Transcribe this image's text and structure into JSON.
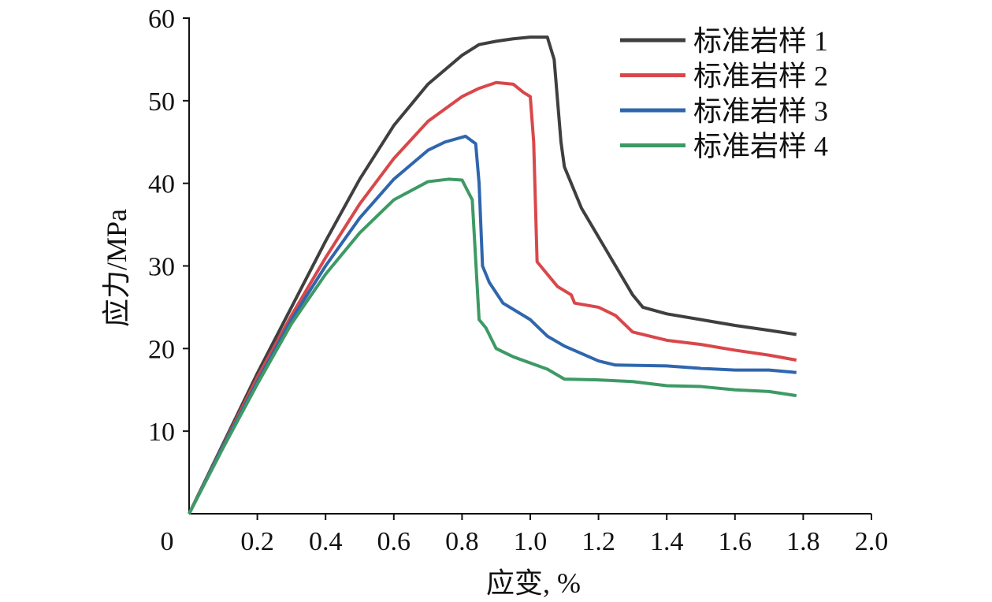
{
  "chart_data": {
    "type": "line",
    "title": "",
    "xlabel": "应变, %",
    "ylabel": "应力/MPa",
    "xlim": [
      0,
      2.0
    ],
    "ylim": [
      0,
      60
    ],
    "origin_label": "0",
    "xticks": [
      "0.2",
      "0.4",
      "0.6",
      "0.8",
      "1.0",
      "1.2",
      "1.4",
      "1.6",
      "1.8",
      "2.0"
    ],
    "xtick_values": [
      0.2,
      0.4,
      0.6,
      0.8,
      1.0,
      1.2,
      1.4,
      1.6,
      1.8,
      2.0
    ],
    "yticks": [
      "10",
      "20",
      "30",
      "40",
      "50",
      "60"
    ],
    "ytick_values": [
      10,
      20,
      30,
      40,
      50,
      60
    ],
    "grid": false,
    "legend_position": "top-right",
    "series": [
      {
        "name": "标准岩样 1",
        "color": "#3f3f3f",
        "points": [
          [
            0,
            0
          ],
          [
            0.1,
            8.5
          ],
          [
            0.2,
            17
          ],
          [
            0.3,
            25
          ],
          [
            0.4,
            33
          ],
          [
            0.5,
            40.5
          ],
          [
            0.6,
            47
          ],
          [
            0.7,
            52
          ],
          [
            0.8,
            55.5
          ],
          [
            0.85,
            56.8
          ],
          [
            0.9,
            57.2
          ],
          [
            0.95,
            57.5
          ],
          [
            1.0,
            57.7
          ],
          [
            1.05,
            57.7
          ],
          [
            1.07,
            55
          ],
          [
            1.09,
            45
          ],
          [
            1.1,
            42
          ],
          [
            1.15,
            37
          ],
          [
            1.2,
            33.5
          ],
          [
            1.25,
            30
          ],
          [
            1.3,
            26.5
          ],
          [
            1.33,
            25
          ],
          [
            1.4,
            24.2
          ],
          [
            1.5,
            23.5
          ],
          [
            1.6,
            22.8
          ],
          [
            1.7,
            22.2
          ],
          [
            1.78,
            21.7
          ]
        ]
      },
      {
        "name": "标准岩样 2",
        "color": "#d9474a",
        "points": [
          [
            0,
            0
          ],
          [
            0.1,
            8.3
          ],
          [
            0.2,
            16.5
          ],
          [
            0.3,
            24
          ],
          [
            0.4,
            31
          ],
          [
            0.5,
            37.5
          ],
          [
            0.6,
            43
          ],
          [
            0.7,
            47.5
          ],
          [
            0.8,
            50.5
          ],
          [
            0.85,
            51.5
          ],
          [
            0.9,
            52.2
          ],
          [
            0.95,
            52
          ],
          [
            0.98,
            51
          ],
          [
            1.0,
            50.5
          ],
          [
            1.01,
            45
          ],
          [
            1.02,
            30.5
          ],
          [
            1.05,
            29
          ],
          [
            1.08,
            27.5
          ],
          [
            1.12,
            26.5
          ],
          [
            1.13,
            25.5
          ],
          [
            1.2,
            25
          ],
          [
            1.25,
            24
          ],
          [
            1.3,
            22
          ],
          [
            1.4,
            21
          ],
          [
            1.5,
            20.5
          ],
          [
            1.6,
            19.8
          ],
          [
            1.7,
            19.2
          ],
          [
            1.78,
            18.6
          ]
        ]
      },
      {
        "name": "标准岩样 3",
        "color": "#2f66ad",
        "points": [
          [
            0,
            0
          ],
          [
            0.1,
            8.2
          ],
          [
            0.2,
            16
          ],
          [
            0.3,
            23.5
          ],
          [
            0.4,
            30
          ],
          [
            0.5,
            35.8
          ],
          [
            0.6,
            40.5
          ],
          [
            0.7,
            44
          ],
          [
            0.75,
            45
          ],
          [
            0.81,
            45.7
          ],
          [
            0.84,
            44.8
          ],
          [
            0.85,
            40
          ],
          [
            0.86,
            30
          ],
          [
            0.88,
            28
          ],
          [
            0.92,
            25.5
          ],
          [
            1.0,
            23.5
          ],
          [
            1.05,
            21.5
          ],
          [
            1.1,
            20.3
          ],
          [
            1.2,
            18.5
          ],
          [
            1.25,
            18
          ],
          [
            1.4,
            17.9
          ],
          [
            1.5,
            17.6
          ],
          [
            1.6,
            17.4
          ],
          [
            1.7,
            17.4
          ],
          [
            1.78,
            17.1
          ]
        ]
      },
      {
        "name": "标准岩样 4",
        "color": "#3d9a64",
        "points": [
          [
            0,
            0
          ],
          [
            0.1,
            8
          ],
          [
            0.2,
            15.7
          ],
          [
            0.3,
            23
          ],
          [
            0.4,
            29
          ],
          [
            0.5,
            34
          ],
          [
            0.6,
            38
          ],
          [
            0.7,
            40.2
          ],
          [
            0.76,
            40.5
          ],
          [
            0.8,
            40.4
          ],
          [
            0.83,
            38
          ],
          [
            0.85,
            23.5
          ],
          [
            0.87,
            22.5
          ],
          [
            0.9,
            20
          ],
          [
            0.95,
            19
          ],
          [
            1.05,
            17.5
          ],
          [
            1.1,
            16.3
          ],
          [
            1.2,
            16.2
          ],
          [
            1.3,
            16
          ],
          [
            1.4,
            15.5
          ],
          [
            1.5,
            15.4
          ],
          [
            1.6,
            15
          ],
          [
            1.7,
            14.8
          ],
          [
            1.78,
            14.3
          ]
        ]
      }
    ]
  }
}
